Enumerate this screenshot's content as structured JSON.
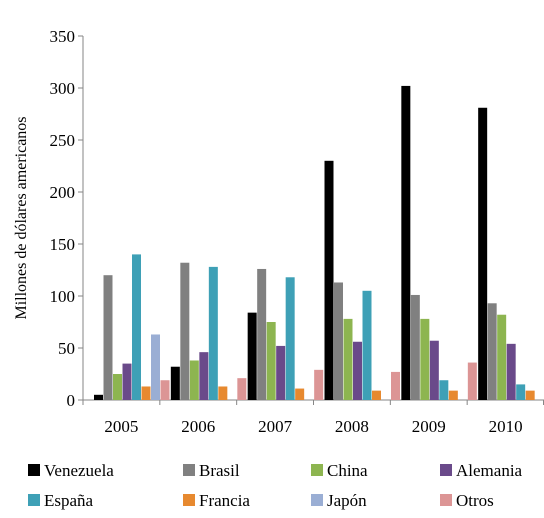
{
  "chart_data": {
    "type": "bar",
    "title": "",
    "xlabel": "",
    "ylabel": "Millones de dólares americanos",
    "ylim": [
      0,
      350
    ],
    "yticks": [
      0,
      50,
      100,
      150,
      200,
      250,
      300,
      350
    ],
    "categories": [
      "2005",
      "2006",
      "2007",
      "2008",
      "2009",
      "2010"
    ],
    "grid": false,
    "legend_position": "bottom",
    "series": [
      {
        "name": "Venezuela",
        "color": "#000000",
        "values": [
          5,
          32,
          84,
          230,
          302,
          281
        ]
      },
      {
        "name": "Brasil",
        "color": "#808080",
        "values": [
          120,
          132,
          126,
          113,
          101,
          93
        ]
      },
      {
        "name": "China",
        "color": "#8db550",
        "values": [
          25,
          38,
          75,
          78,
          78,
          82
        ]
      },
      {
        "name": "Alemania",
        "color": "#6a4a8a",
        "values": [
          35,
          46,
          52,
          56,
          57,
          54
        ]
      },
      {
        "name": "España",
        "color": "#3ea0b6",
        "values": [
          140,
          128,
          118,
          105,
          19,
          15
        ]
      },
      {
        "name": "Francia",
        "color": "#e7892f",
        "values": [
          13,
          13,
          11,
          9,
          9,
          9
        ]
      },
      {
        "name": "Japón",
        "color": "#9aaed4",
        "values": [
          63,
          0,
          0,
          0,
          0,
          0
        ]
      },
      {
        "name": "Otros",
        "color": "#dc9595",
        "values": [
          19,
          21,
          29,
          27,
          36,
          0
        ]
      }
    ]
  }
}
